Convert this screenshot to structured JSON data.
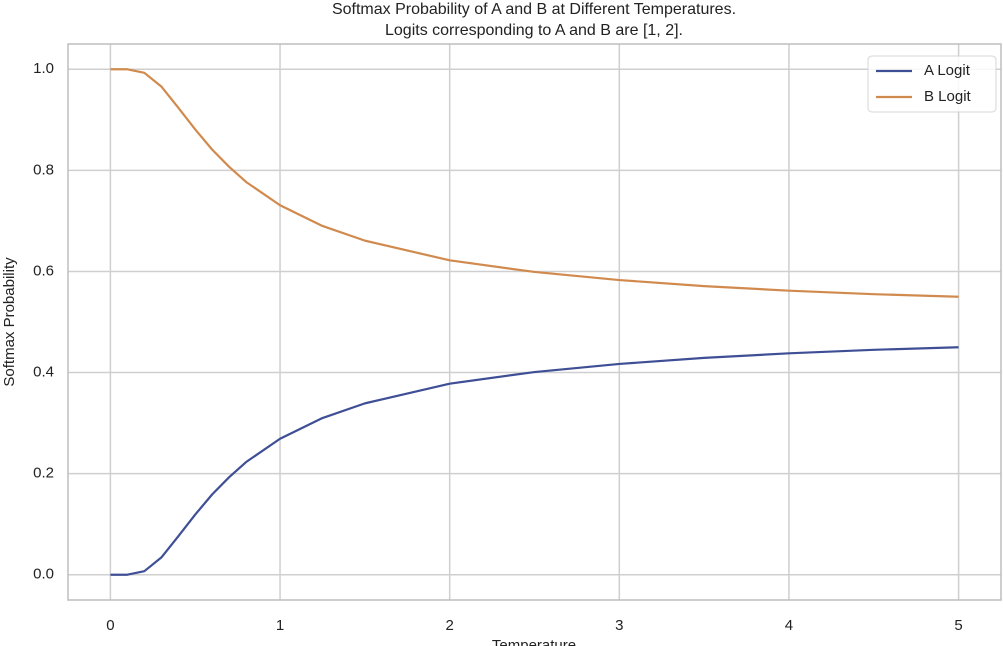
{
  "chart_data": {
    "type": "line",
    "title": "Softmax Probability of A and B at Different Temperatures.",
    "subtitle": "Logits corresponding to A and B are [1, 2].",
    "x_label": "Temperature",
    "y_label": "Softmax Probability",
    "x": [
      0,
      0.1,
      0.2,
      0.3,
      0.4,
      0.5,
      0.6,
      0.7,
      0.8,
      1,
      1.25,
      1.5,
      2,
      2.5,
      3,
      3.5,
      4,
      4.5,
      5
    ],
    "series": [
      {
        "name": "A Logit",
        "color": "#3f4f96",
        "values": [
          0,
          0,
          0.007,
          0.034,
          0.076,
          0.119,
          0.159,
          0.193,
          0.223,
          0.269,
          0.31,
          0.339,
          0.378,
          0.401,
          0.417,
          0.429,
          0.438,
          0.445,
          0.45
        ]
      },
      {
        "name": "B Logit",
        "color": "#d18a4e",
        "values": [
          1,
          1,
          0.993,
          0.966,
          0.924,
          0.881,
          0.841,
          0.807,
          0.777,
          0.731,
          0.69,
          0.661,
          0.622,
          0.599,
          0.583,
          0.571,
          0.562,
          0.555,
          0.55
        ]
      }
    ],
    "xlim": [
      -0.25,
      5.25
    ],
    "ylim": [
      -0.05,
      1.05
    ],
    "xticks": [
      0,
      1,
      2,
      3,
      4,
      5
    ],
    "yticks": [
      {
        "value": 0,
        "label": "0.0"
      },
      0.2,
      0.4,
      0.6,
      0.8,
      {
        "value": 1,
        "label": "1.0"
      }
    ],
    "grid": true,
    "legend": "upper right"
  }
}
